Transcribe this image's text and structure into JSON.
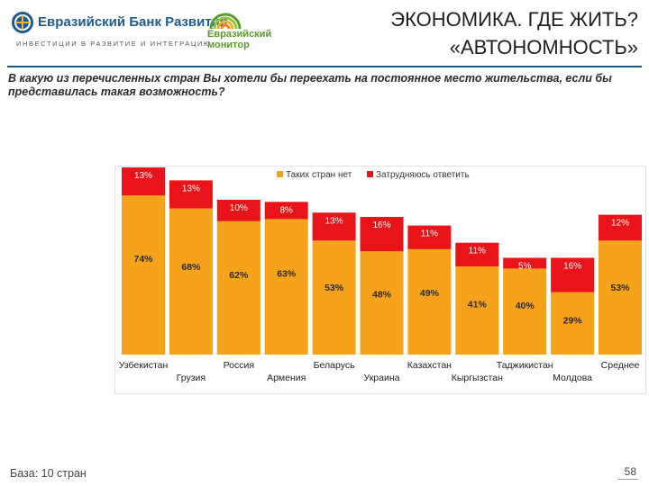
{
  "header": {
    "bank_name": "Евразийский Банк Развития",
    "bank_tagline": "ИНВЕСТИЦИИ В РАЗВИТИЕ И ИНТЕГРАЦИЮ",
    "monitor_name": "Евразийский\nмонитор",
    "title_line1": "ЭКОНОМИКА. ГДЕ ЖИТЬ?",
    "title_line2": "«АВТОНОМНОСТЬ»",
    "brand_color": "#1e5b8f",
    "monitor_color": "#5a9c2c"
  },
  "question": "В какую из перечисленных стран Вы хотели бы переехать на постоянное место жительства, если бы представилась такая возможность?",
  "footer": {
    "base_text": "База: 10 стран",
    "page_number": "58"
  },
  "chart_data": {
    "type": "bar",
    "stacked": true,
    "legend_position": "top",
    "grid": false,
    "ylim": [
      0,
      100
    ],
    "categories": [
      "Узбекистан",
      "Грузия",
      "Россия",
      "Армения",
      "Беларусь",
      "Украина",
      "Казахстан",
      "Кыргызстан",
      "Таджикистан",
      "Молдова",
      "Среднее"
    ],
    "series": [
      {
        "name": "Таких стран нет",
        "color": "#f7a21b",
        "values": [
          74,
          68,
          62,
          63,
          53,
          48,
          49,
          41,
          40,
          29,
          53
        ],
        "labels": [
          "74%",
          "68%",
          "62%",
          "63%",
          "53%",
          "48%",
          "49%",
          "41%",
          "40%",
          "29%",
          "53%"
        ]
      },
      {
        "name": "Затрудняюсь ответить",
        "color": "#e8141a",
        "values": [
          13,
          13,
          10,
          8,
          13,
          16,
          11,
          11,
          5,
          16,
          12
        ],
        "labels": [
          "13%",
          "13%",
          "10%",
          "8%",
          "13%",
          "16%",
          "11%",
          "11%",
          "5%",
          "16%",
          "12%"
        ]
      }
    ]
  }
}
